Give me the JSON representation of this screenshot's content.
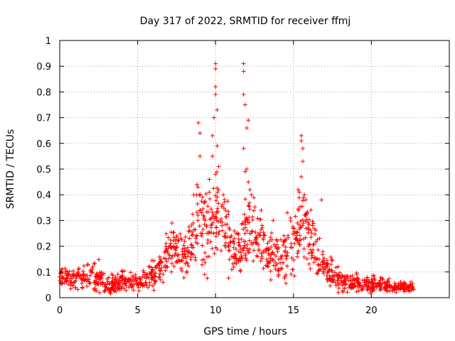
{
  "chart_data": {
    "type": "scatter",
    "title": "Day 317 of 2022, SRMTID for receiver ffmj",
    "xlabel": "GPS time / hours",
    "ylabel": "SRMTID / TECUs",
    "xlim": [
      0,
      25
    ],
    "ylim": [
      0,
      1
    ],
    "xticks": [
      0,
      5,
      10,
      15,
      20
    ],
    "xtick_labels": [
      "0",
      "5",
      "10",
      "15",
      "20"
    ],
    "yticks": [
      0,
      0.1,
      0.2,
      0.3,
      0.4,
      0.5,
      0.6,
      0.7,
      0.8,
      0.9,
      1
    ],
    "ytick_labels": [
      "0",
      "0.1",
      "0.2",
      "0.3",
      "0.4",
      "0.5",
      "0.6",
      "0.7",
      "0.8",
      "0.9",
      "1"
    ],
    "grid": true,
    "marker": "+",
    "marker_color": "#ff0000",
    "envelope": {
      "description": "typical SRMTID level vs time (hours, TECU)",
      "x": [
        0,
        0.5,
        1,
        1.5,
        2,
        2.5,
        3,
        3.5,
        4,
        4.5,
        5,
        5.5,
        6,
        6.5,
        7,
        7.5,
        8,
        8.5,
        9,
        9.5,
        10,
        10.5,
        11,
        11.5,
        12,
        12.5,
        13,
        13.5,
        14,
        14.5,
        15,
        15.5,
        16,
        16.5,
        17,
        17.5,
        18,
        18.5,
        19,
        19.5,
        20,
        20.5,
        21,
        21.5,
        22,
        22.5,
        22.8
      ],
      "y": [
        0.07,
        0.08,
        0.07,
        0.075,
        0.08,
        0.08,
        0.05,
        0.05,
        0.06,
        0.06,
        0.06,
        0.07,
        0.09,
        0.12,
        0.17,
        0.2,
        0.18,
        0.2,
        0.3,
        0.26,
        0.32,
        0.3,
        0.2,
        0.18,
        0.25,
        0.28,
        0.2,
        0.18,
        0.15,
        0.18,
        0.22,
        0.3,
        0.25,
        0.16,
        0.12,
        0.08,
        0.07,
        0.06,
        0.06,
        0.055,
        0.05,
        0.05,
        0.045,
        0.04,
        0.04,
        0.04,
        0.04
      ],
      "spread": [
        0.03,
        0.03,
        0.03,
        0.03,
        0.035,
        0.04,
        0.025,
        0.025,
        0.03,
        0.025,
        0.025,
        0.03,
        0.04,
        0.05,
        0.07,
        0.07,
        0.06,
        0.08,
        0.12,
        0.12,
        0.12,
        0.1,
        0.08,
        0.08,
        0.1,
        0.1,
        0.08,
        0.07,
        0.06,
        0.07,
        0.08,
        0.1,
        0.09,
        0.06,
        0.05,
        0.035,
        0.03,
        0.025,
        0.025,
        0.02,
        0.02,
        0.02,
        0.02,
        0.015,
        0.015,
        0.015,
        0.015
      ]
    },
    "points": [
      [
        8.8,
        0.44
      ],
      [
        8.9,
        0.68
      ],
      [
        9.0,
        0.64
      ],
      [
        9.0,
        0.55
      ],
      [
        9.6,
        0.46
      ],
      [
        9.8,
        0.63
      ],
      [
        9.8,
        0.55
      ],
      [
        9.9,
        0.7
      ],
      [
        10.0,
        0.91
      ],
      [
        10.0,
        0.89
      ],
      [
        10.0,
        0.82
      ],
      [
        10.0,
        0.79
      ],
      [
        10.1,
        0.73
      ],
      [
        10.1,
        0.59
      ],
      [
        10.2,
        0.51
      ],
      [
        10.2,
        0.42
      ],
      [
        11.8,
        0.91
      ],
      [
        11.8,
        0.88
      ],
      [
        11.8,
        0.79
      ],
      [
        11.9,
        0.75
      ],
      [
        12.0,
        0.66
      ],
      [
        12.1,
        0.69
      ],
      [
        11.8,
        0.58
      ],
      [
        11.9,
        0.49
      ],
      [
        12.0,
        0.5
      ],
      [
        12.1,
        0.45
      ],
      [
        12.2,
        0.42
      ],
      [
        12.3,
        0.4
      ],
      [
        15.5,
        0.63
      ],
      [
        15.5,
        0.61
      ],
      [
        15.6,
        0.58
      ],
      [
        15.6,
        0.53
      ],
      [
        15.5,
        0.47
      ],
      [
        15.3,
        0.42
      ],
      [
        15.7,
        0.4
      ],
      [
        16.8,
        0.38
      ],
      [
        14.6,
        0.33
      ],
      [
        13.7,
        0.3
      ],
      [
        7.2,
        0.29
      ],
      [
        8.6,
        0.4
      ]
    ]
  }
}
